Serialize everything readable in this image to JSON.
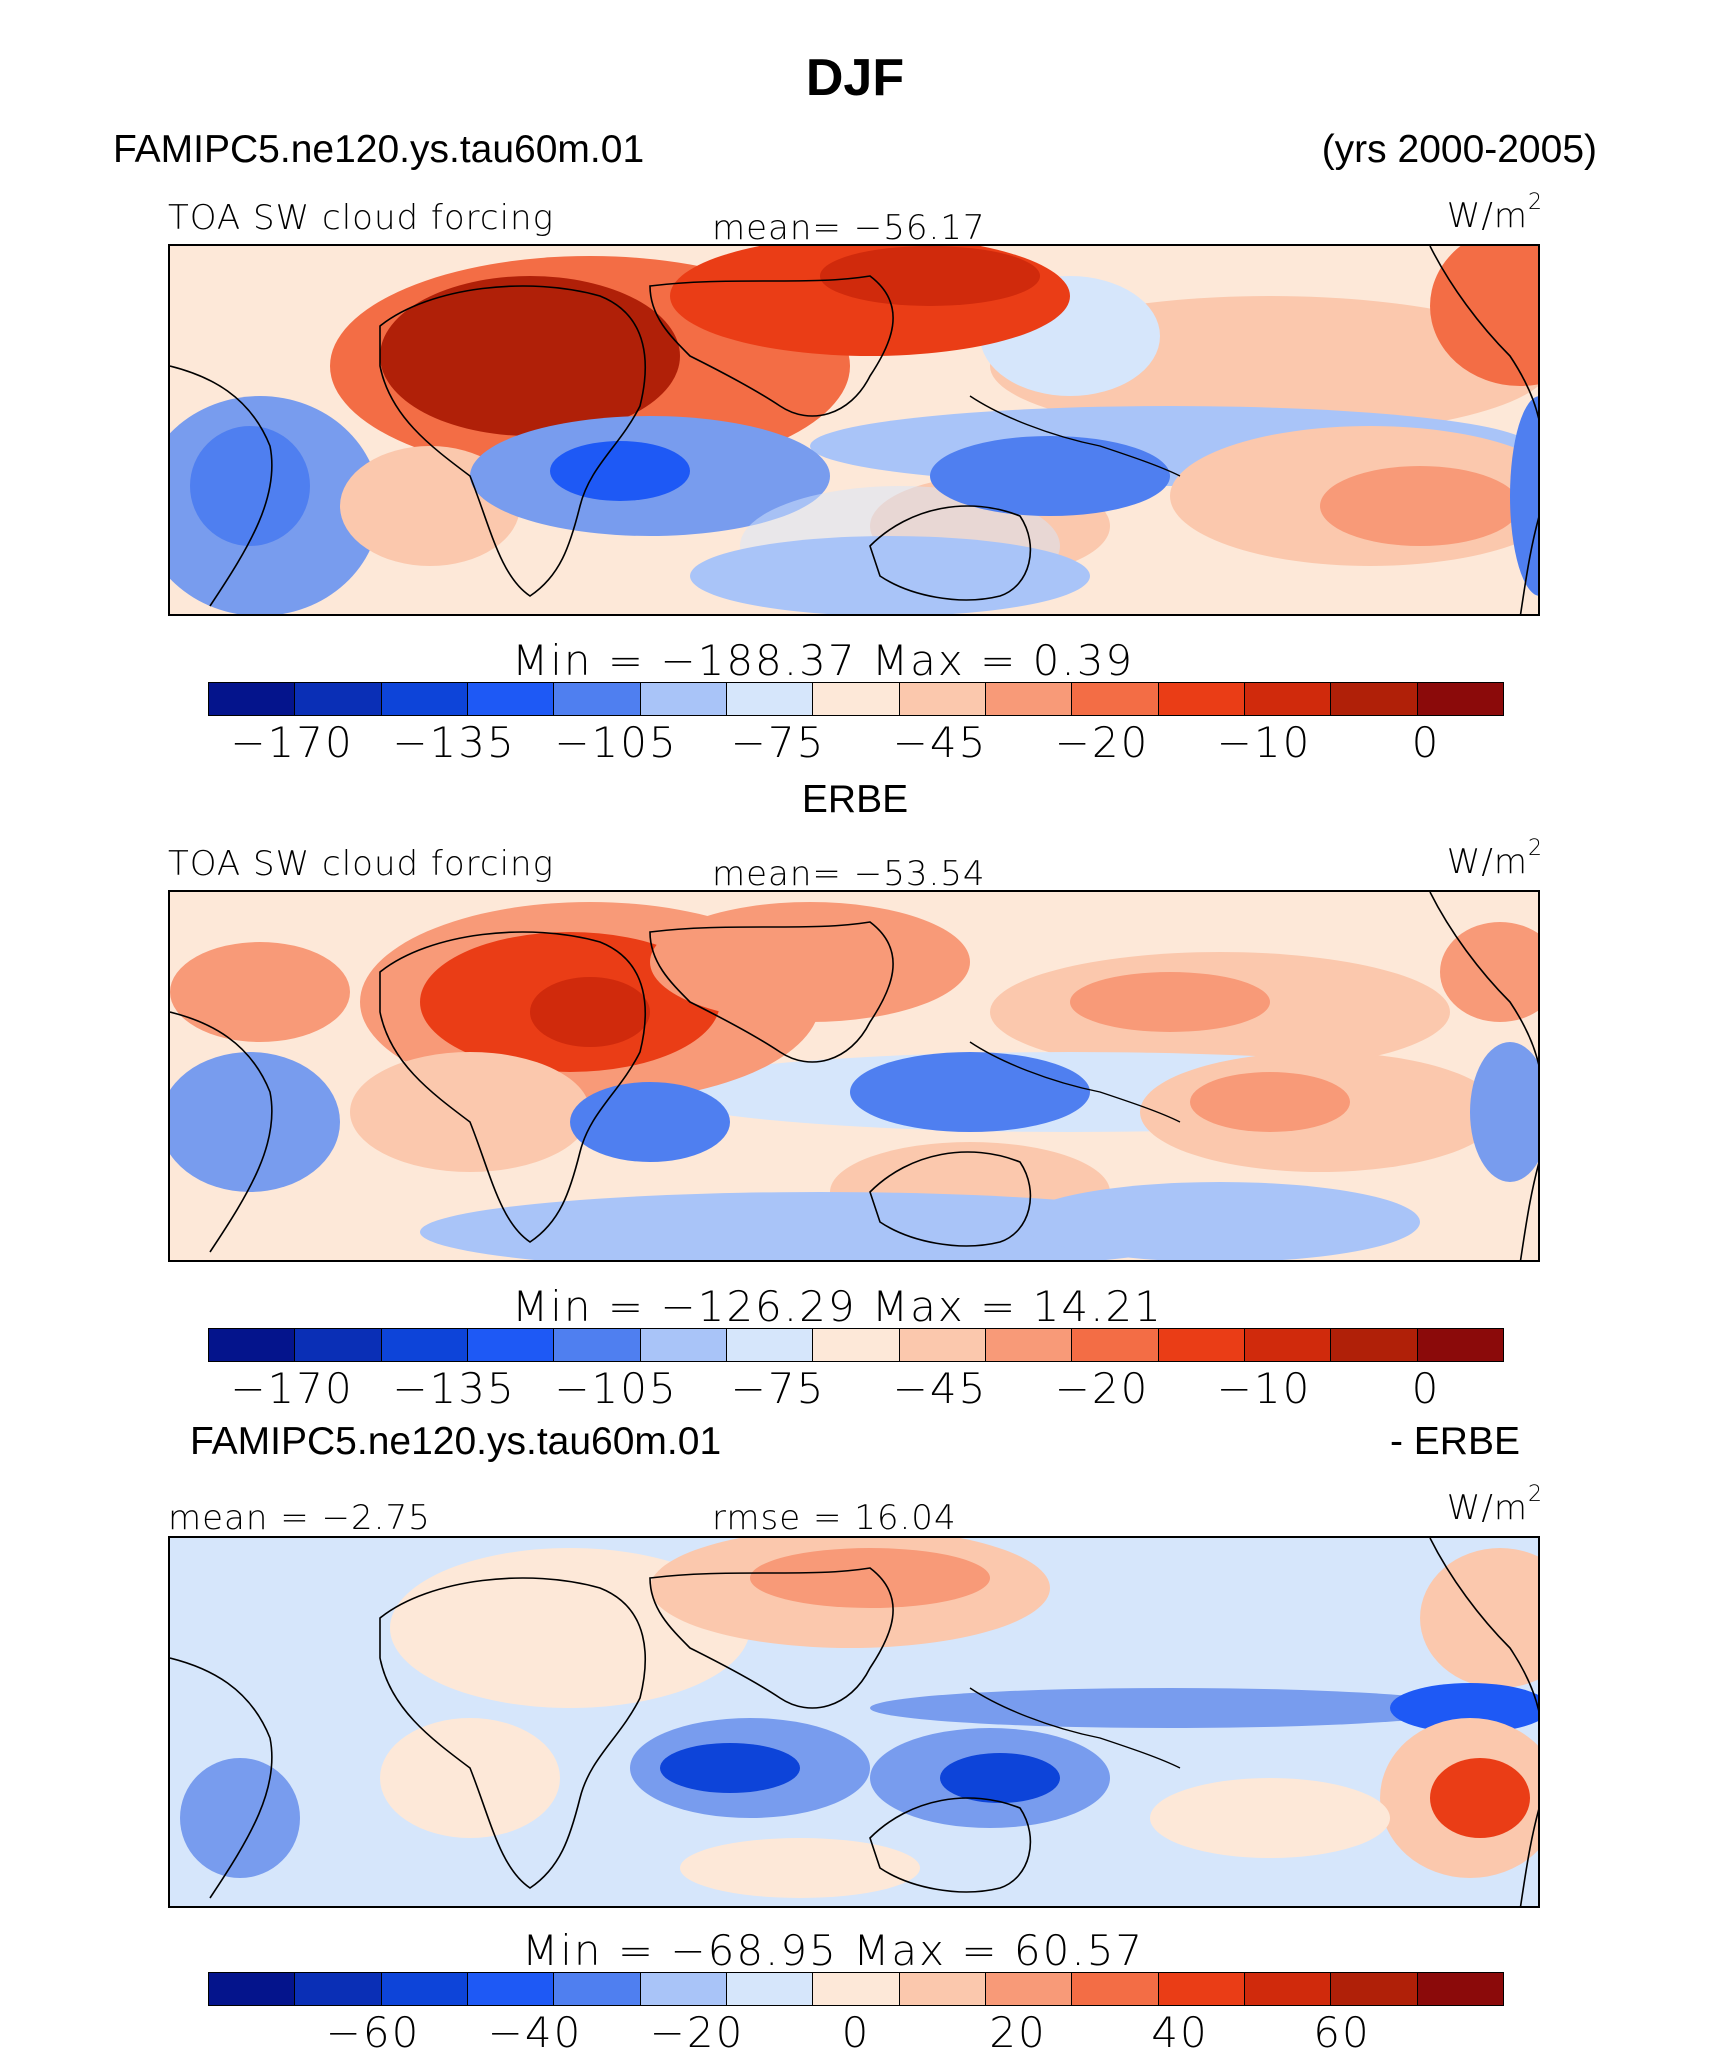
{
  "title": "DJF",
  "model_name": "FAMIPC5.ne120.ys.tau60m.01",
  "years": "(yrs 2000-2005)",
  "unit_base": "W/m",
  "unit_exp": "2",
  "colors": {
    "abs_scale": [
      "#04148c",
      "#0a2fb6",
      "#0d44d9",
      "#1e59f5",
      "#4f7ff0",
      "#789cee",
      "#a9c4f8",
      "#d6e6fb",
      "#fde8d8",
      "#fbc8ad",
      "#f89a78",
      "#f36d45",
      "#ea3d16",
      "#d02a0c",
      "#b02008",
      "#8b0a0a"
    ],
    "diff_scale": [
      "#04148c",
      "#0a2fb6",
      "#0d44d9",
      "#1e59f5",
      "#4f7ff0",
      "#789cee",
      "#a9c4f8",
      "#d6e6fb",
      "#fde8d8",
      "#fbc8ad",
      "#f89a78",
      "#f36d45",
      "#ea3d16",
      "#d02a0c",
      "#b02008",
      "#8b0a0a"
    ],
    "coast": "#000000"
  },
  "panels": [
    {
      "label": "TOA SW cloud forcing",
      "stat1": "mean= −56.17",
      "stat2": "",
      "minmax": "Min  =  −188.37  Max  =     0.39",
      "ticks": [
        "−170",
        "−135",
        "−105",
        "−75",
        "−45",
        "−20",
        "−10",
        "0"
      ]
    },
    {
      "caption": "ERBE",
      "label": "TOA SW cloud forcing",
      "stat1": "mean= −53.54",
      "stat2": "",
      "minmax": "Min  =  −126.29  Max  =   14.21",
      "ticks": [
        "−170",
        "−135",
        "−105",
        "−75",
        "−45",
        "−20",
        "−10",
        "0"
      ]
    },
    {
      "caption_left": "FAMIPC5.ne120.ys.tau60m.01",
      "caption_right": "- ERBE",
      "label": "mean =   −2.75",
      "stat1": "rmse =   16.04",
      "minmax": "Min  =  −68.95  Max  =    60.57",
      "ticks": [
        "−60",
        "−40",
        "−20",
        "0",
        "20",
        "40",
        "60"
      ]
    }
  ]
}
